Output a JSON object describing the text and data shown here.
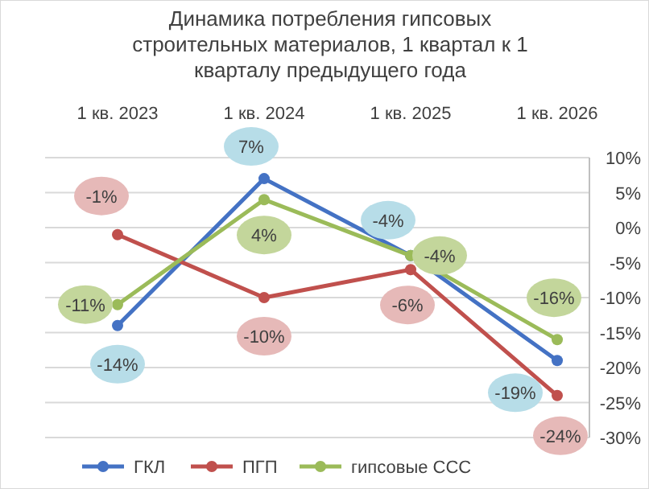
{
  "chart_data": {
    "type": "line",
    "title": "Динамика потребления  гипсовых строительных материалов, 1 квартал  к 1 кварталу предыдущего года",
    "categories": [
      "1 кв. 2023",
      "1 кв. 2024",
      "1 кв. 2025",
      "1 кв. 2026"
    ],
    "series": [
      {
        "name": "ГКЛ",
        "color": "#4472c4",
        "values": [
          -14,
          7,
          -4,
          -19
        ],
        "value_labels": [
          "-14%",
          "7%",
          "-4%",
          "-19%"
        ]
      },
      {
        "name": "ПГП",
        "color": "#c0504d",
        "values": [
          -1,
          -10,
          -6,
          -24
        ],
        "value_labels": [
          "-1%",
          "-10%",
          "-6%",
          "-24%"
        ]
      },
      {
        "name": "гипсовые ССС",
        "color": "#9bbb59",
        "values": [
          -11,
          4,
          -4,
          -16
        ],
        "value_labels": [
          "-11%",
          "4%",
          "-4%",
          "-16%"
        ]
      }
    ],
    "ylim": [
      -30,
      10
    ],
    "yticks": [
      {
        "value": 10,
        "label": "10%"
      },
      {
        "value": 5,
        "label": "5%"
      },
      {
        "value": 0,
        "label": "0%"
      },
      {
        "value": -5,
        "label": "-5%"
      },
      {
        "value": -10,
        "label": "-10%"
      },
      {
        "value": -15,
        "label": "-15%"
      },
      {
        "value": -20,
        "label": "-20%"
      },
      {
        "value": -25,
        "label": "-25%"
      },
      {
        "value": -30,
        "label": "-30%"
      }
    ],
    "grid": "y",
    "legend": "bottom",
    "marker": "circle",
    "line_style": "solid"
  }
}
